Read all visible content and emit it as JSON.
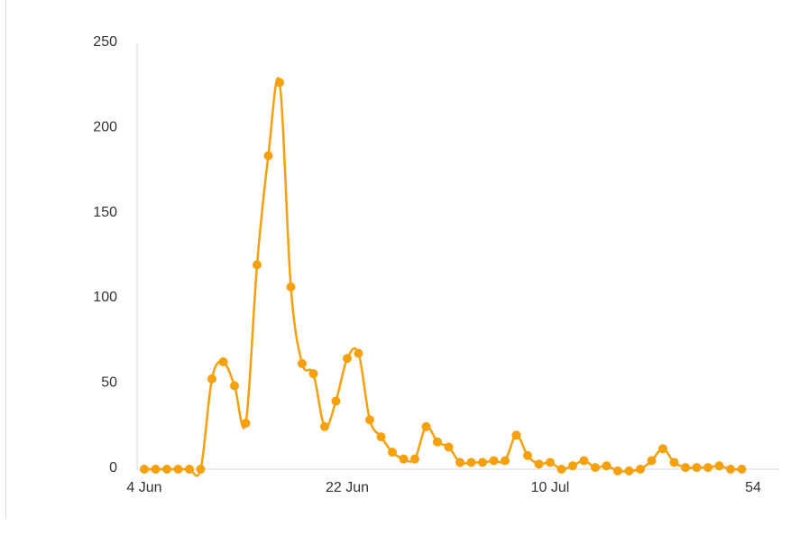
{
  "chart_data": {
    "type": "line",
    "title": "",
    "xlabel": "",
    "ylabel": "",
    "x_range": [
      0,
      54
    ],
    "ylim": [
      0,
      250
    ],
    "y_ticks": [
      "0",
      "50",
      "100",
      "150",
      "200",
      "250"
    ],
    "x_ticks": [
      {
        "value": 0,
        "label": "4 Jun"
      },
      {
        "value": 18,
        "label": "22 Jun"
      },
      {
        "value": 36,
        "label": "10 Jul"
      },
      {
        "value": 54,
        "label": "54"
      }
    ],
    "grid": false,
    "legend": "none",
    "series": [
      {
        "color": "#f5a00c",
        "x": [
          0,
          1,
          2,
          3,
          4,
          5,
          6,
          7,
          8,
          9,
          10,
          11,
          12,
          13,
          14,
          15,
          16,
          17,
          18,
          19,
          20,
          21,
          22,
          23,
          24,
          25,
          26,
          27,
          28,
          29,
          30,
          31,
          32,
          33,
          34,
          35,
          36,
          37,
          38,
          39,
          40,
          41,
          42,
          43,
          44,
          45,
          46,
          47,
          48,
          49,
          50,
          51,
          52,
          53
        ],
        "values": [
          0,
          0,
          0,
          0,
          0,
          0,
          53,
          63,
          49,
          27,
          120,
          184,
          227,
          107,
          62,
          56,
          25,
          40,
          65,
          68,
          29,
          19,
          10,
          6,
          6,
          25,
          16,
          13,
          4,
          4,
          4,
          5,
          5,
          20,
          8,
          3,
          4,
          0,
          2,
          5,
          1,
          2,
          -1,
          -1,
          0,
          5,
          12,
          4,
          1,
          1,
          1,
          2,
          0,
          0
        ]
      }
    ]
  }
}
